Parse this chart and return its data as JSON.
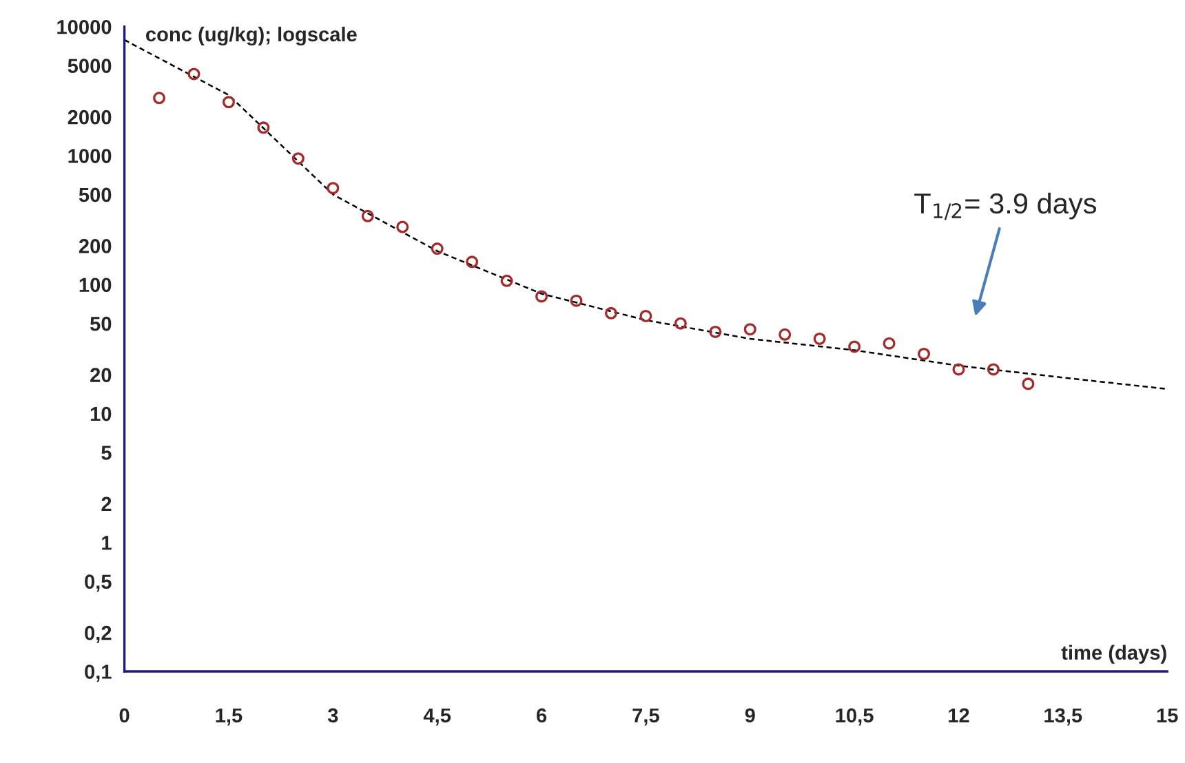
{
  "chart_data": {
    "type": "scatter",
    "xlabel": "time (days)",
    "ylabel": "conc (ug/kg); logscale",
    "log": "y",
    "xlim": [
      0,
      15
    ],
    "xticks": [
      0,
      {
        "value": 1.5,
        "label": "1,5"
      },
      3,
      {
        "value": 4.5,
        "label": "4,5"
      },
      6,
      {
        "value": 7.5,
        "label": "7,5"
      },
      9,
      {
        "value": 10.5,
        "label": "10,5"
      },
      12,
      {
        "value": 13.5,
        "label": "13,5"
      },
      15
    ],
    "ylim": [
      0.1,
      10000
    ],
    "yticks": [
      {
        "value": 0.1,
        "label": "0,1"
      },
      {
        "value": 0.2,
        "label": "0,2"
      },
      {
        "value": 0.5,
        "label": "0,5"
      },
      1,
      2,
      5,
      10,
      20,
      50,
      100,
      200,
      500,
      1000,
      2000,
      5000,
      10000
    ],
    "grid": false,
    "legend": false,
    "series": [
      {
        "marker": "circle",
        "color": "#a52a2a",
        "x": [
          0.5,
          1,
          1.5,
          2,
          2.5,
          3,
          3.5,
          4,
          4.5,
          5,
          5.5,
          6,
          6.5,
          7,
          7.5,
          8,
          8.5,
          9,
          9.5,
          10,
          10.5,
          11,
          11.5,
          12,
          12.5,
          13
        ],
        "values": [
          2800,
          4300,
          2600,
          1650,
          950,
          560,
          340,
          280,
          190,
          150,
          107,
          81,
          75,
          60,
          57,
          50,
          43,
          45,
          41,
          38,
          33,
          35,
          29,
          22,
          22,
          17
        ]
      },
      {
        "type": "line",
        "line_style": "dashed",
        "marker": "none",
        "color": "#000000",
        "x": [
          0,
          1.5,
          3,
          4.5,
          6,
          7.5,
          9,
          10.5,
          12,
          13.5,
          15
        ],
        "values": [
          7900,
          2950,
          500,
          182,
          85,
          53,
          38,
          31,
          23.5,
          19,
          15.5
        ]
      }
    ],
    "annotations": [
      "T$_{1/2}$= 3.9 days"
    ]
  }
}
